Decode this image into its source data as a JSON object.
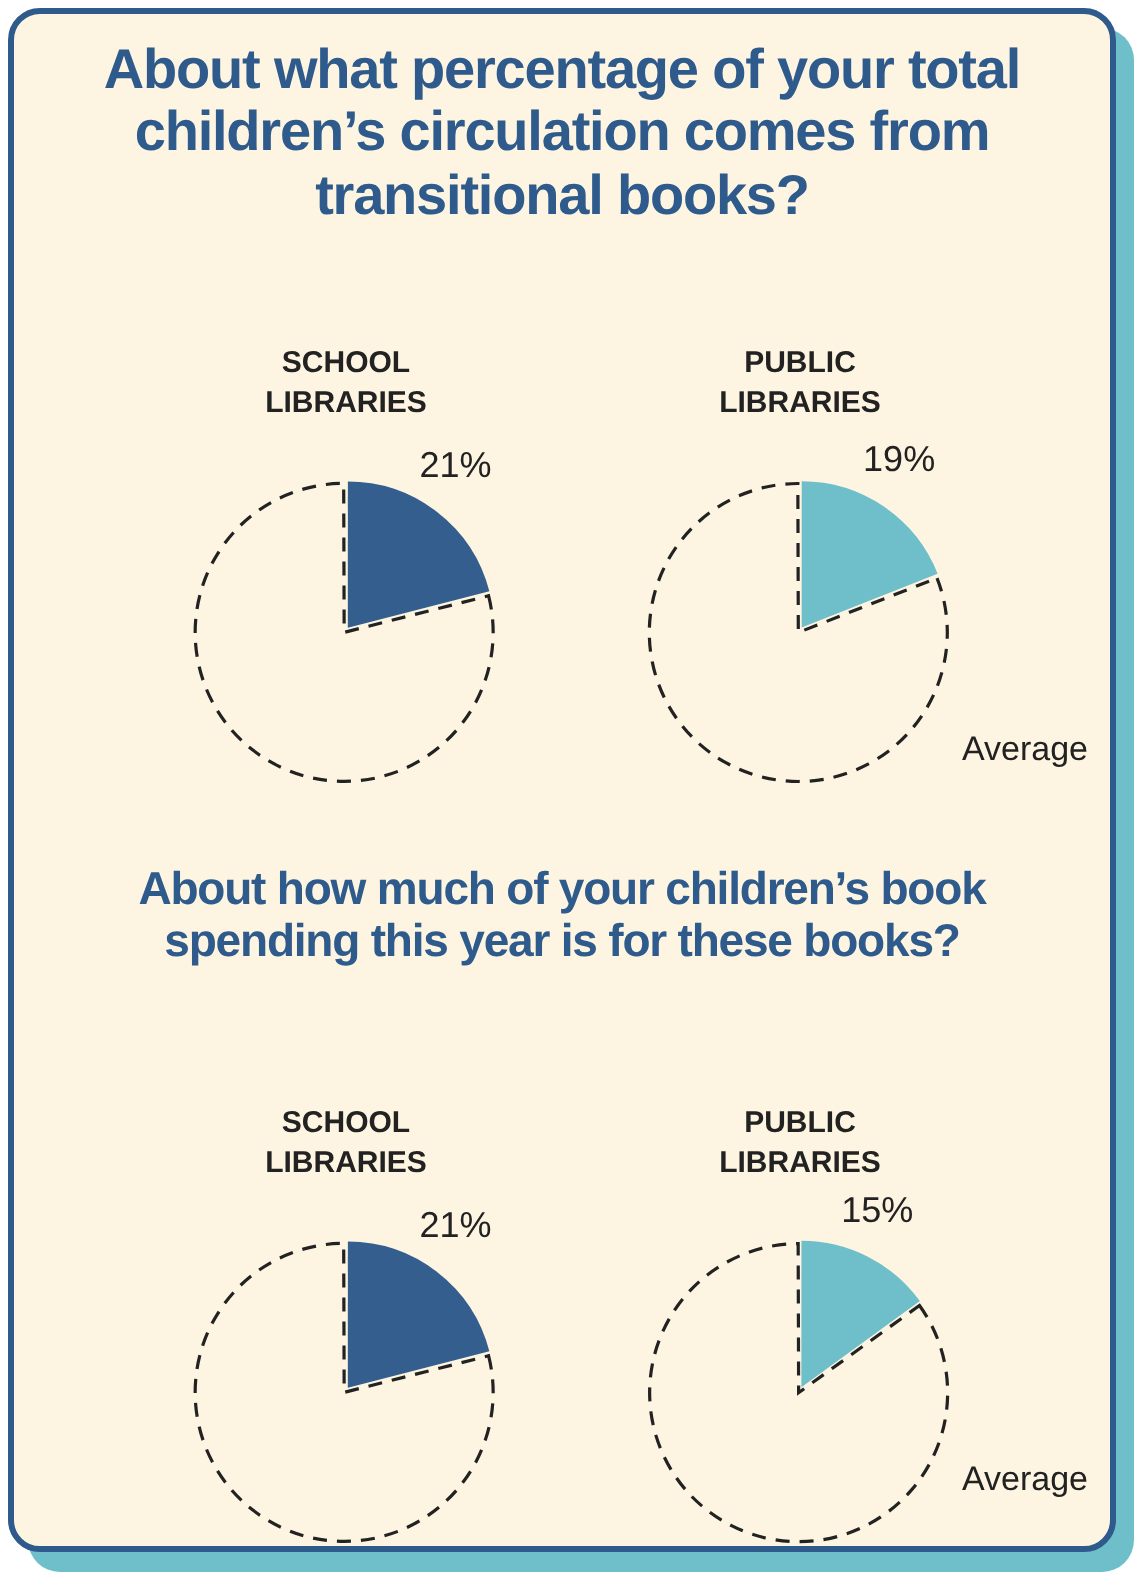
{
  "chart_data": [
    {
      "type": "pie",
      "title": "About what percentage of your total children’s circulation comes from transitional books?",
      "subtitle": "SCHOOL LIBRARIES",
      "categories": [
        null,
        null
      ],
      "values": [
        21,
        79
      ],
      "colors": [
        "#335e8e",
        "#fdf5e1"
      ],
      "value_labels": [
        "21%",
        null
      ]
    },
    {
      "type": "pie",
      "subtitle": "PUBLIC LIBRARIES",
      "categories": [
        null,
        null
      ],
      "values": [
        19,
        81
      ],
      "colors": [
        "#6fbfcb",
        "#fdf5e1"
      ],
      "value_labels": [
        "19%",
        null
      ],
      "annotations": [
        "Average"
      ]
    },
    {
      "type": "pie",
      "title": "About how much of your children’s book spending this year is for these books?",
      "subtitle": "SCHOOL LIBRARIES",
      "categories": [
        null,
        null
      ],
      "values": [
        21,
        79
      ],
      "colors": [
        "#335e8e",
        "#fdf5e1"
      ],
      "value_labels": [
        "21%",
        null
      ]
    },
    {
      "type": "pie",
      "subtitle": "PUBLIC LIBRARIES",
      "categories": [
        null,
        null
      ],
      "values": [
        15,
        85
      ],
      "colors": [
        "#6fbfcb",
        "#fdf5e1"
      ],
      "value_labels": [
        "15%",
        null
      ],
      "annotations": [
        "Average"
      ]
    }
  ]
}
